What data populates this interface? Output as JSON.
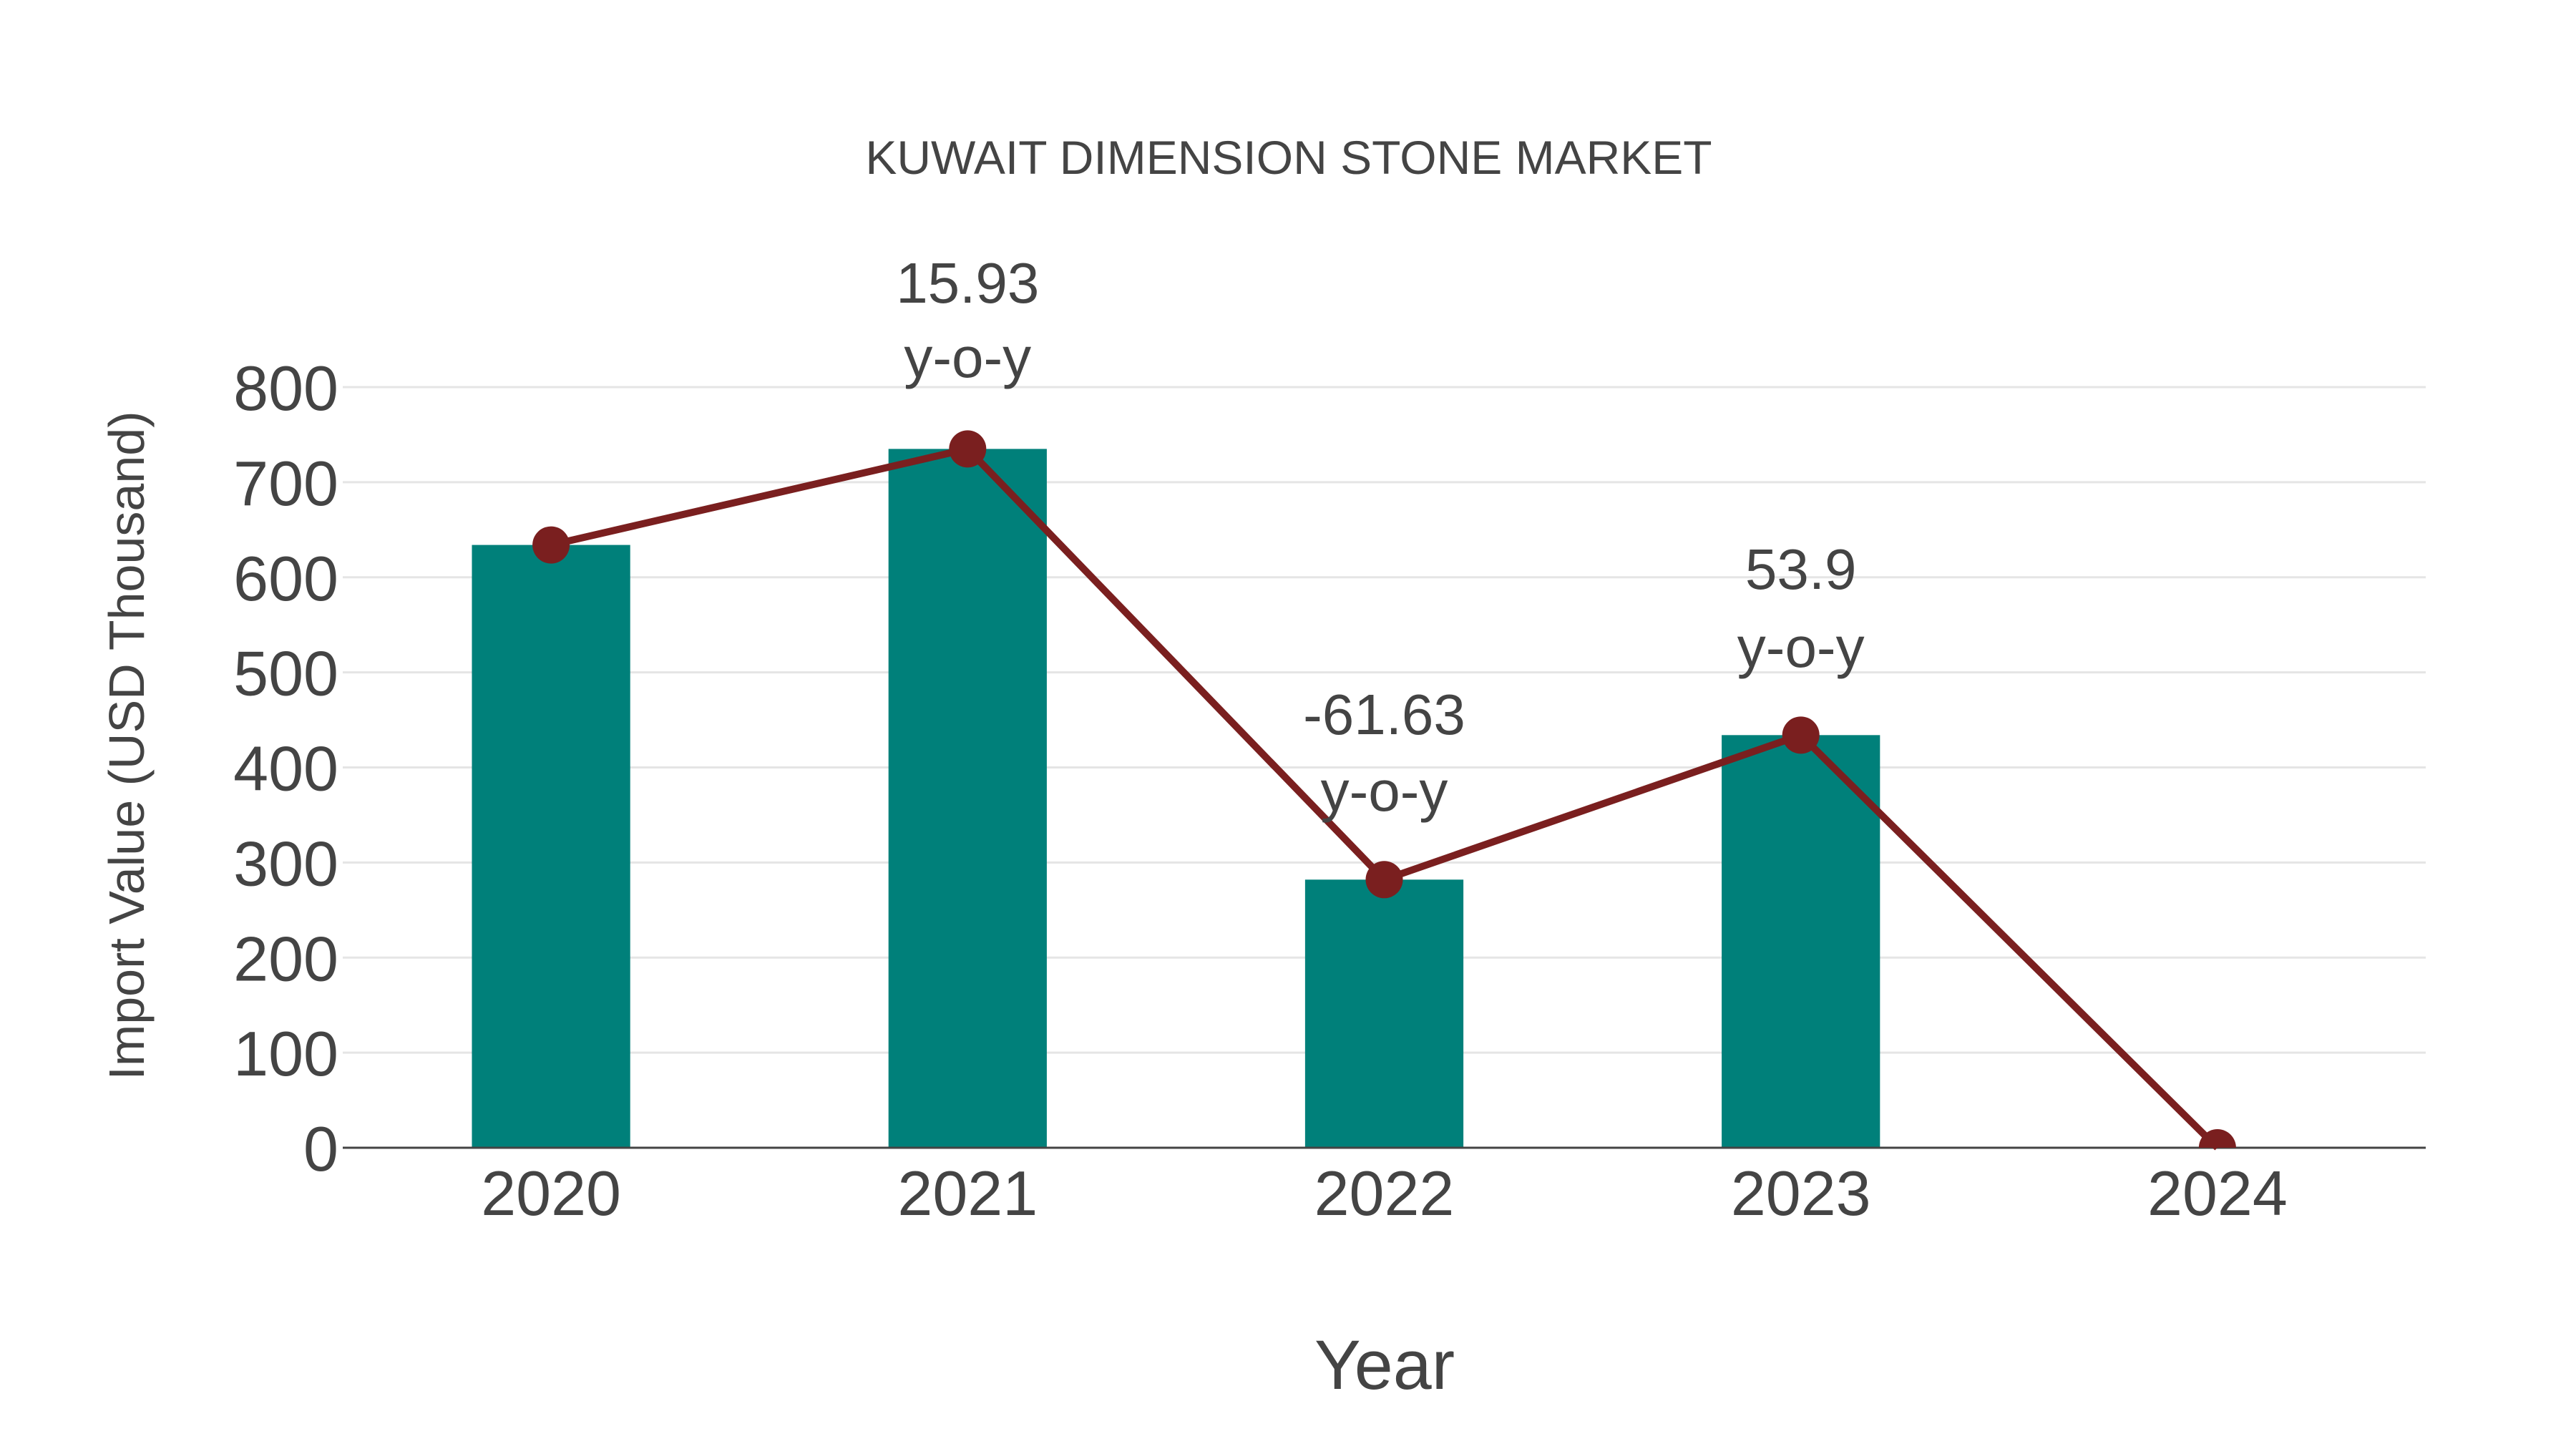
{
  "chart_data": {
    "type": "bar",
    "title": "KUWAIT DIMENSION STONE MARKET",
    "xlabel": "Year",
    "ylabel": "Import Value (USD Thousand)",
    "categories": [
      "2020",
      "2021",
      "2022",
      "2023",
      "2024"
    ],
    "series": [
      {
        "name": "Import Value",
        "type": "bar",
        "color": "#00807a",
        "values": [
          634,
          735,
          282,
          434,
          0
        ]
      },
      {
        "name": "Import Value (trend)",
        "type": "line",
        "color": "#7a1f1f",
        "marker": "circle",
        "values": [
          634,
          735,
          282,
          434,
          0
        ]
      }
    ],
    "annotations": [
      {
        "category": "2021",
        "value_label": "15.93",
        "suffix": "y-o-y"
      },
      {
        "category": "2022",
        "value_label": "-61.63",
        "suffix": "y-o-y"
      },
      {
        "category": "2023",
        "value_label": "53.9",
        "suffix": "y-o-y"
      }
    ],
    "yticks": [
      0,
      100,
      200,
      300,
      400,
      500,
      600,
      700,
      800
    ],
    "ylim": [
      0,
      800
    ],
    "grid": true,
    "legend": "none"
  },
  "colors": {
    "bar": "#00807a",
    "line": "#7a1f1f",
    "text": "#444444",
    "grid": "#e5e5e5",
    "axis": "#444444"
  }
}
